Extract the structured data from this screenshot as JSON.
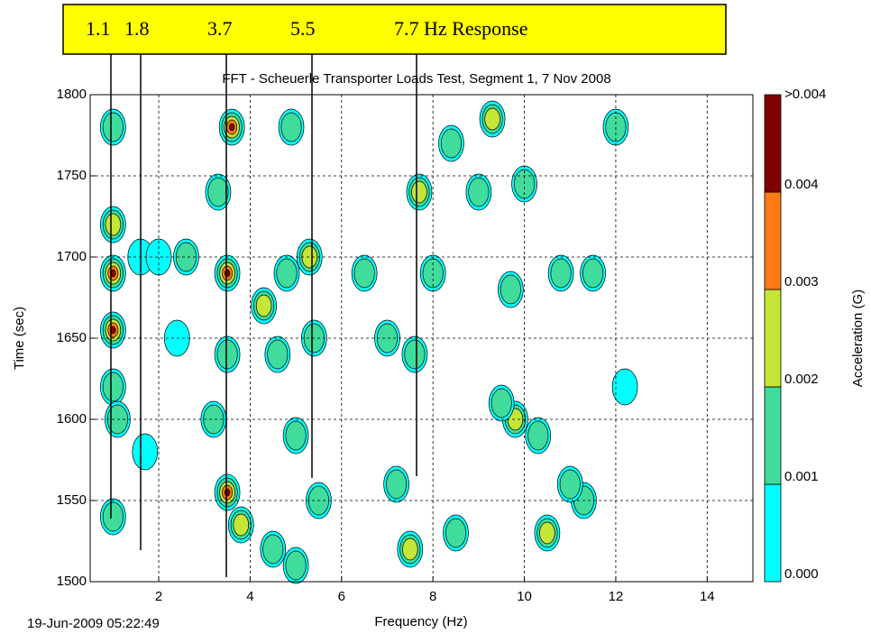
{
  "chart_data": {
    "type": "contour",
    "title": "FFT - Scheuerle Transporter Loads Test,   Segment 1,   7 Nov 2008",
    "x_label": "Frequency (Hz)",
    "y_label": "Time (sec)",
    "timestamp": "19-Jun-2009 05:22:49",
    "annotations": [
      "1.1",
      "1.8",
      "3.7",
      "5.5",
      "7.7 Hz Response"
    ],
    "xlim": [
      0.5,
      15
    ],
    "xticks": [
      2,
      4,
      6,
      8,
      10,
      12,
      14
    ],
    "ylim": [
      1500,
      1800
    ],
    "yticks": [
      1500,
      1550,
      1600,
      1650,
      1700,
      1750,
      1800
    ],
    "grid": true,
    "x": [
      1.0,
      1.0,
      1.0,
      1.0,
      1.0,
      1.0,
      1.1,
      1.7,
      1.6,
      3.5,
      3.6,
      3.5,
      3.8,
      3.3,
      3.5,
      3.2,
      2.6,
      2.4,
      2.0,
      4.3,
      4.8,
      4.6,
      5.3,
      5.4,
      5.0,
      5.5,
      5.0,
      4.5,
      4.9,
      6.5,
      7.0,
      7.6,
      7.7,
      8.4,
      8.0,
      7.5,
      7.2,
      8.5,
      9.0,
      9.3,
      9.7,
      9.8,
      9.5,
      10.3,
      10.5,
      11.3,
      10.8,
      11.5,
      12.0,
      10.0,
      11.0,
      12.2
    ],
    "y": [
      1690,
      1655,
      1720,
      1780,
      1620,
      1540,
      1600,
      1580,
      1700,
      1690,
      1780,
      1555,
      1535,
      1740,
      1640,
      1600,
      1700,
      1650,
      1700,
      1670,
      1690,
      1640,
      1700,
      1650,
      1590,
      1550,
      1510,
      1520,
      1780,
      1690,
      1650,
      1640,
      1740,
      1770,
      1690,
      1520,
      1560,
      1530,
      1740,
      1785,
      1680,
      1600,
      1610,
      1590,
      1530,
      1550,
      1690,
      1690,
      1780,
      1745,
      1560,
      1620
    ],
    "values": [
      0.0045,
      0.0045,
      0.002,
      0.0015,
      0.0015,
      0.0012,
      0.001,
      0.0008,
      0.0008,
      0.0045,
      0.0045,
      0.0045,
      0.0025,
      0.0015,
      0.0015,
      0.001,
      0.001,
      0.0008,
      0.0008,
      0.0025,
      0.0015,
      0.001,
      0.002,
      0.001,
      0.001,
      0.0015,
      0.0015,
      0.0015,
      0.001,
      0.001,
      0.0015,
      0.0015,
      0.002,
      0.001,
      0.0015,
      0.002,
      0.001,
      0.0015,
      0.0012,
      0.002,
      0.0015,
      0.002,
      0.001,
      0.0015,
      0.002,
      0.0015,
      0.0015,
      0.0012,
      0.001,
      0.0015,
      0.0012,
      0.0008
    ],
    "colorbar": {
      "label": "Acceleration (G)",
      "clim": [
        0,
        0.005
      ],
      "ticks": [
        {
          "value": 0,
          "label": "0.000"
        },
        0.001,
        0.002,
        0.003,
        0.004,
        {
          "value": 0.005,
          "label": ">0.004"
        }
      ],
      "colors": [
        "#00ffff",
        "#3fdc9c",
        "#c6e637",
        "#ff7a12",
        "#800000"
      ]
    }
  }
}
